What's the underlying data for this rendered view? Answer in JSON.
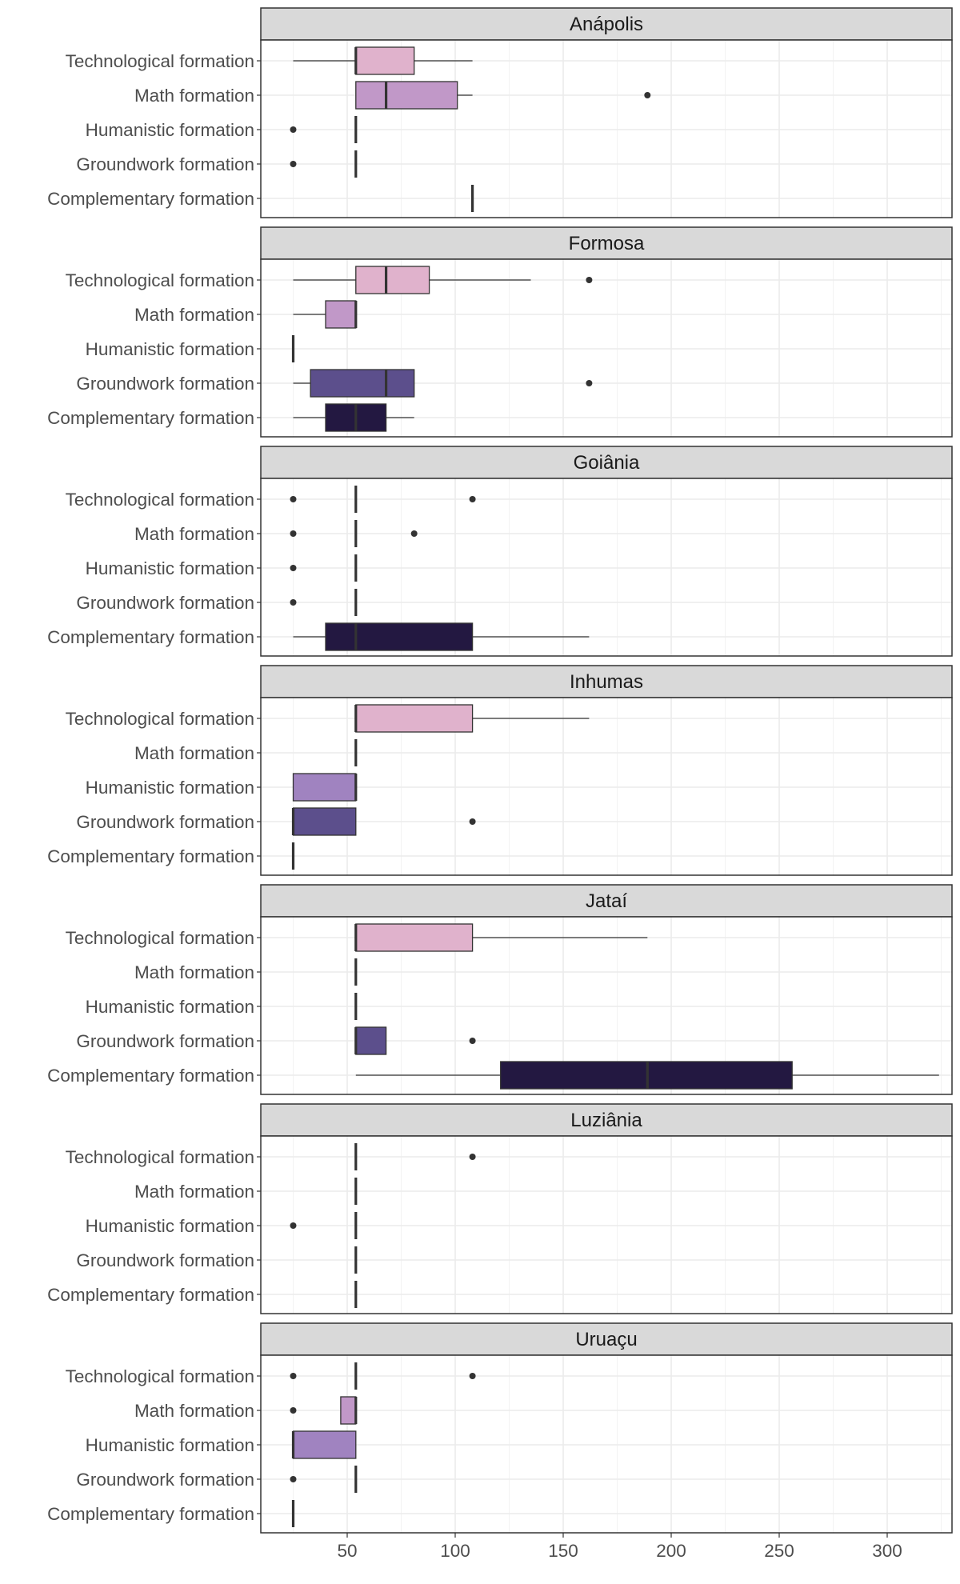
{
  "chart_data": {
    "type": "boxplot",
    "title": "",
    "xlabel": "",
    "ylabel": "",
    "xlim": [
      10,
      330
    ],
    "x_ticks": [
      50,
      100,
      150,
      200,
      250,
      300
    ],
    "grid": true,
    "legend": "none",
    "categories": [
      "Technological formation",
      "Math formation",
      "Humanistic formation",
      "Groundwork formation",
      "Complementary formation"
    ],
    "category_colors": {
      "Technological formation": "#e0b2cc",
      "Math formation": "#c198c8",
      "Humanistic formation": "#a083c0",
      "Groundwork formation": "#5c4f8c",
      "Complementary formation": "#231841"
    },
    "panels": [
      {
        "name": "Anápolis",
        "boxes": [
          {
            "category": "Technological formation",
            "min": 25,
            "q1": 54,
            "median": 54,
            "q3": 81,
            "max": 108,
            "outliers": []
          },
          {
            "category": "Math formation",
            "min": 54,
            "q1": 54,
            "median": 68,
            "q3": 101,
            "max": 108,
            "outliers": [
              189
            ]
          },
          {
            "category": "Humanistic formation",
            "min": 54,
            "q1": 54,
            "median": 54,
            "q3": 54,
            "max": 54,
            "outliers": [
              25
            ]
          },
          {
            "category": "Groundwork formation",
            "min": 54,
            "q1": 54,
            "median": 54,
            "q3": 54,
            "max": 54,
            "outliers": [
              25
            ]
          },
          {
            "category": "Complementary formation",
            "min": 108,
            "q1": 108,
            "median": 108,
            "q3": 108,
            "max": 108,
            "outliers": []
          }
        ]
      },
      {
        "name": "Formosa",
        "boxes": [
          {
            "category": "Technological formation",
            "min": 25,
            "q1": 54,
            "median": 68,
            "q3": 88,
            "max": 135,
            "outliers": [
              162
            ]
          },
          {
            "category": "Math formation",
            "min": 25,
            "q1": 40,
            "median": 54,
            "q3": 54,
            "max": 54,
            "outliers": []
          },
          {
            "category": "Humanistic formation",
            "min": 25,
            "q1": 25,
            "median": 25,
            "q3": 25,
            "max": 25,
            "outliers": []
          },
          {
            "category": "Groundwork formation",
            "min": 25,
            "q1": 33,
            "median": 68,
            "q3": 81,
            "max": 81,
            "outliers": [
              162
            ]
          },
          {
            "category": "Complementary formation",
            "min": 25,
            "q1": 40,
            "median": 54,
            "q3": 68,
            "max": 81,
            "outliers": []
          }
        ]
      },
      {
        "name": "Goiânia",
        "boxes": [
          {
            "category": "Technological formation",
            "min": 54,
            "q1": 54,
            "median": 54,
            "q3": 54,
            "max": 54,
            "outliers": [
              25,
              108
            ]
          },
          {
            "category": "Math formation",
            "min": 54,
            "q1": 54,
            "median": 54,
            "q3": 54,
            "max": 54,
            "outliers": [
              25,
              81
            ]
          },
          {
            "category": "Humanistic formation",
            "min": 54,
            "q1": 54,
            "median": 54,
            "q3": 54,
            "max": 54,
            "outliers": [
              25
            ]
          },
          {
            "category": "Groundwork formation",
            "min": 54,
            "q1": 54,
            "median": 54,
            "q3": 54,
            "max": 54,
            "outliers": [
              25
            ]
          },
          {
            "category": "Complementary formation",
            "min": 25,
            "q1": 40,
            "median": 54,
            "q3": 108,
            "max": 162,
            "outliers": []
          }
        ]
      },
      {
        "name": "Inhumas",
        "boxes": [
          {
            "category": "Technological formation",
            "min": 54,
            "q1": 54,
            "median": 54,
            "q3": 108,
            "max": 162,
            "outliers": []
          },
          {
            "category": "Math formation",
            "min": 54,
            "q1": 54,
            "median": 54,
            "q3": 54,
            "max": 54,
            "outliers": []
          },
          {
            "category": "Humanistic formation",
            "min": 25,
            "q1": 25,
            "median": 54,
            "q3": 54,
            "max": 54,
            "outliers": []
          },
          {
            "category": "Groundwork formation",
            "min": 25,
            "q1": 25,
            "median": 25,
            "q3": 54,
            "max": 54,
            "outliers": [
              108
            ]
          },
          {
            "category": "Complementary formation",
            "min": 25,
            "q1": 25,
            "median": 25,
            "q3": 25,
            "max": 25,
            "outliers": []
          }
        ]
      },
      {
        "name": "Jataí",
        "boxes": [
          {
            "category": "Technological formation",
            "min": 54,
            "q1": 54,
            "median": 54,
            "q3": 108,
            "max": 189,
            "outliers": []
          },
          {
            "category": "Math formation",
            "min": 54,
            "q1": 54,
            "median": 54,
            "q3": 54,
            "max": 54,
            "outliers": []
          },
          {
            "category": "Humanistic formation",
            "min": 54,
            "q1": 54,
            "median": 54,
            "q3": 54,
            "max": 54,
            "outliers": []
          },
          {
            "category": "Groundwork formation",
            "min": 54,
            "q1": 54,
            "median": 54,
            "q3": 68,
            "max": 68,
            "outliers": [
              108
            ]
          },
          {
            "category": "Complementary formation",
            "min": 54,
            "q1": 121,
            "median": 189,
            "q3": 256,
            "max": 324,
            "outliers": []
          }
        ]
      },
      {
        "name": "Luziânia",
        "boxes": [
          {
            "category": "Technological formation",
            "min": 54,
            "q1": 54,
            "median": 54,
            "q3": 54,
            "max": 54,
            "outliers": [
              108
            ]
          },
          {
            "category": "Math formation",
            "min": 54,
            "q1": 54,
            "median": 54,
            "q3": 54,
            "max": 54,
            "outliers": []
          },
          {
            "category": "Humanistic formation",
            "min": 54,
            "q1": 54,
            "median": 54,
            "q3": 54,
            "max": 54,
            "outliers": [
              25
            ]
          },
          {
            "category": "Groundwork formation",
            "min": 54,
            "q1": 54,
            "median": 54,
            "q3": 54,
            "max": 54,
            "outliers": []
          },
          {
            "category": "Complementary formation",
            "min": 54,
            "q1": 54,
            "median": 54,
            "q3": 54,
            "max": 54,
            "outliers": []
          }
        ]
      },
      {
        "name": "Uruaçu",
        "boxes": [
          {
            "category": "Technological formation",
            "min": 54,
            "q1": 54,
            "median": 54,
            "q3": 54,
            "max": 54,
            "outliers": [
              25,
              108
            ]
          },
          {
            "category": "Math formation",
            "min": 47,
            "q1": 47,
            "median": 54,
            "q3": 54,
            "max": 54,
            "outliers": [
              25
            ]
          },
          {
            "category": "Humanistic formation",
            "min": 25,
            "q1": 25,
            "median": 25,
            "q3": 54,
            "max": 54,
            "outliers": []
          },
          {
            "category": "Groundwork formation",
            "min": 54,
            "q1": 54,
            "median": 54,
            "q3": 54,
            "max": 54,
            "outliers": [
              25
            ]
          },
          {
            "category": "Complementary formation",
            "min": 25,
            "q1": 25,
            "median": 25,
            "q3": 25,
            "max": 25,
            "outliers": []
          }
        ]
      }
    ]
  }
}
